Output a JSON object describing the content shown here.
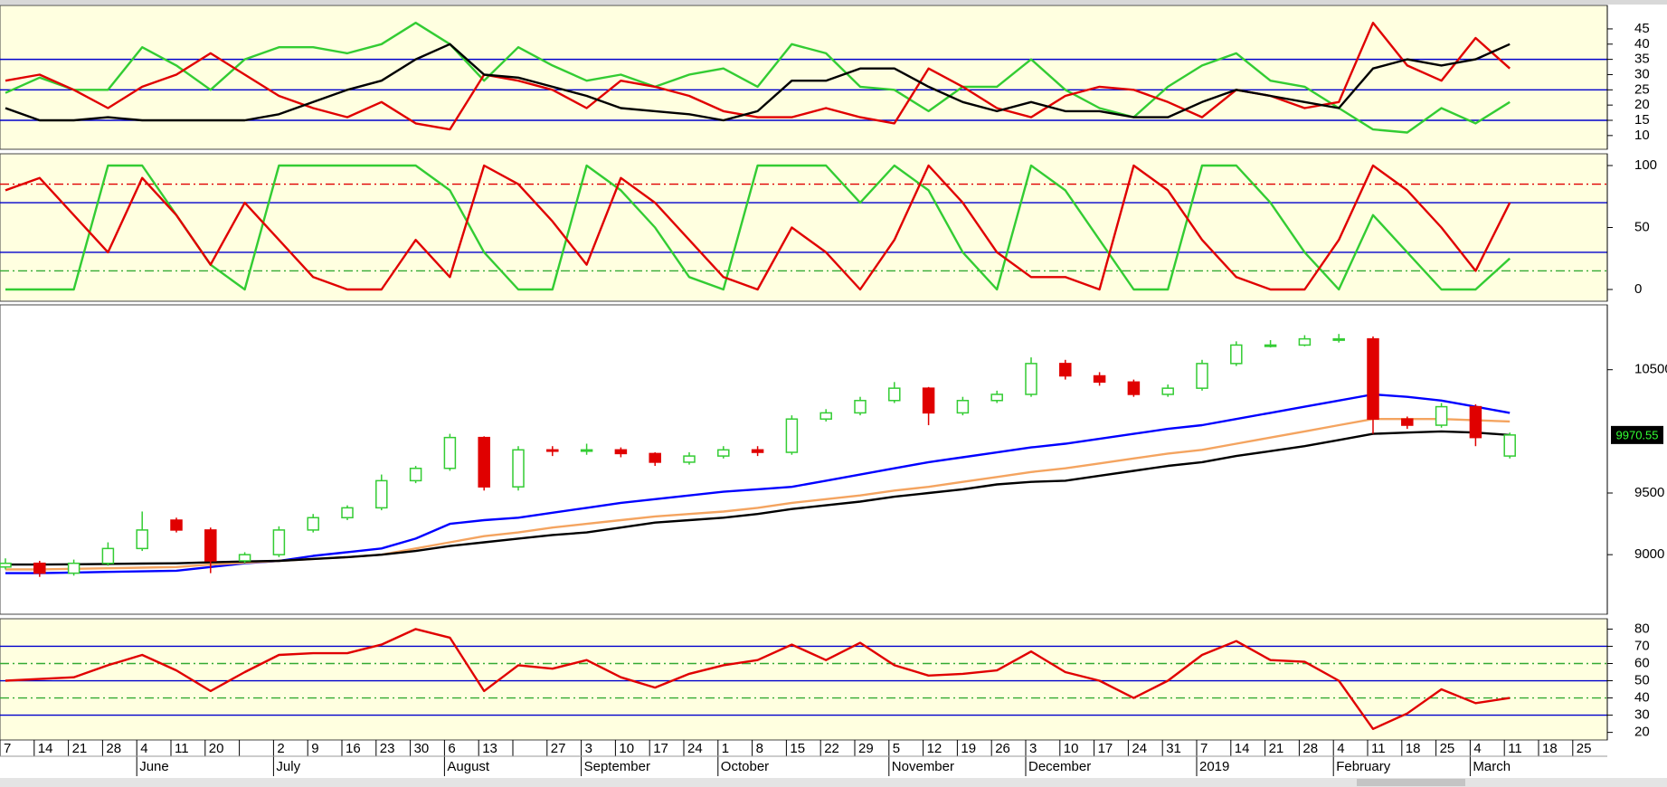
{
  "chart_data": [
    {
      "type": "line",
      "ylim": [
        5.5,
        52.7
      ],
      "yticks": [
        10,
        15,
        20,
        25,
        30,
        35,
        40,
        45
      ],
      "hlines": [
        {
          "value": 15,
          "color": "#0000cc"
        },
        {
          "value": 25,
          "color": "#0000cc"
        },
        {
          "value": 35,
          "color": "#0000cc"
        }
      ],
      "series": [
        {
          "color": "#33cc33",
          "values": [
            24,
            29,
            25,
            25,
            39,
            33,
            25,
            35,
            39,
            39,
            37,
            40,
            47,
            40,
            28,
            39,
            33,
            28,
            30,
            26,
            30,
            32,
            26,
            40,
            37,
            26,
            25,
            18,
            26,
            26,
            35,
            25,
            19,
            16,
            26,
            33,
            37,
            28,
            26,
            19,
            12,
            11,
            19,
            14,
            21,
            null,
            null
          ]
        },
        {
          "color": "#e00000",
          "values": [
            28,
            30,
            25,
            19,
            26,
            30,
            37,
            30,
            23,
            19,
            16,
            21,
            14,
            12,
            30,
            28,
            25,
            19,
            28,
            26,
            23,
            18,
            16,
            16,
            19,
            16,
            14,
            32,
            26,
            19,
            16,
            23,
            26,
            25,
            21,
            16,
            25,
            23,
            19,
            21,
            47,
            33,
            28,
            42,
            32,
            null,
            null
          ]
        },
        {
          "color": "#000000",
          "values": [
            19,
            15,
            15,
            16,
            15,
            15,
            15,
            15,
            17,
            21,
            25,
            28,
            35,
            40,
            30,
            29,
            26,
            23,
            19,
            18,
            17,
            15,
            18,
            28,
            28,
            32,
            32,
            26,
            21,
            18,
            21,
            18,
            18,
            16,
            16,
            21,
            25,
            23,
            21,
            19,
            32,
            35,
            33,
            35,
            40,
            null,
            null
          ]
        }
      ]
    },
    {
      "type": "line",
      "ylim": [
        -9.5,
        109.5
      ],
      "yticks": [
        0,
        50,
        100
      ],
      "hlines": [
        {
          "value": 85,
          "color": "#e00000",
          "dash": true
        },
        {
          "value": 70,
          "color": "#0000cc"
        },
        {
          "value": 30,
          "color": "#0000cc"
        },
        {
          "value": 15,
          "color": "#33aa33",
          "dash": true
        }
      ],
      "series": [
        {
          "color": "#33cc33",
          "values": [
            0,
            0,
            0,
            100,
            100,
            60,
            20,
            0,
            100,
            100,
            100,
            100,
            100,
            80,
            30,
            0,
            0,
            100,
            80,
            50,
            10,
            0,
            100,
            100,
            100,
            70,
            100,
            80,
            30,
            0,
            100,
            80,
            40,
            0,
            0,
            100,
            100,
            70,
            30,
            0,
            60,
            30,
            0,
            0,
            25,
            null,
            null
          ]
        },
        {
          "color": "#e00000",
          "values": [
            80,
            90,
            60,
            30,
            90,
            60,
            20,
            70,
            40,
            10,
            0,
            0,
            40,
            10,
            100,
            85,
            55,
            20,
            90,
            70,
            40,
            10,
            0,
            50,
            30,
            0,
            40,
            100,
            70,
            30,
            10,
            10,
            0,
            100,
            80,
            40,
            10,
            0,
            0,
            40,
            100,
            80,
            50,
            15,
            70,
            null,
            null
          ]
        }
      ]
    },
    {
      "type": "candlestick",
      "ylim": [
        8517,
        11026
      ],
      "yticks": [
        9000,
        9500,
        10500
      ],
      "up_color": "#33cc33",
      "down_color": "#e00000",
      "open": [
        8900,
        8930,
        8850,
        8930,
        9050,
        9280,
        9200,
        8950,
        9000,
        9200,
        9300,
        9380,
        9600,
        9700,
        9950,
        9550,
        9850,
        9840,
        9850,
        9820,
        9750,
        9800,
        9850,
        9830,
        10100,
        10150,
        10250,
        10350,
        10150,
        10250,
        10300,
        10550,
        10450,
        10400,
        10300,
        10350,
        10550,
        10700,
        10700,
        10750,
        10750,
        10100,
        10050,
        10200,
        9800,
        null,
        null
      ],
      "high": [
        8970,
        8950,
        8960,
        9100,
        9350,
        9300,
        9220,
        9020,
        9230,
        9330,
        9400,
        9650,
        9720,
        9980,
        9960,
        9880,
        9880,
        9900,
        9870,
        9830,
        9830,
        9880,
        9880,
        10130,
        10180,
        10280,
        10400,
        10360,
        10280,
        10330,
        10600,
        10580,
        10480,
        10420,
        10380,
        10580,
        10730,
        10740,
        10780,
        10790,
        10770,
        10120,
        10230,
        10220,
        9990,
        null,
        null
      ],
      "low": [
        8880,
        8820,
        8830,
        8910,
        9030,
        9180,
        8850,
        8930,
        8980,
        9180,
        9280,
        9360,
        9580,
        9680,
        9520,
        9520,
        9800,
        9810,
        9790,
        9720,
        9730,
        9780,
        9800,
        9810,
        10080,
        10130,
        10230,
        10050,
        10130,
        10230,
        10280,
        10420,
        10370,
        10280,
        10280,
        10330,
        10530,
        10680,
        10690,
        10720,
        9980,
        10020,
        10030,
        9880,
        9780,
        null,
        null
      ],
      "close": [
        8930,
        8850,
        8930,
        9050,
        9200,
        9200,
        8950,
        9000,
        9200,
        9300,
        9380,
        9600,
        9700,
        9950,
        9550,
        9850,
        9840,
        9850,
        9820,
        9750,
        9800,
        9850,
        9830,
        10100,
        10150,
        10250,
        10350,
        10150,
        10250,
        10300,
        10550,
        10450,
        10400,
        10300,
        10350,
        10550,
        10700,
        10700,
        10750,
        10750,
        10100,
        10050,
        10200,
        9950,
        9970.55,
        null,
        null
      ],
      "series": [
        {
          "color": "#0000ff",
          "values": [
            8850,
            8850,
            8855,
            8860,
            8865,
            8870,
            8900,
            8930,
            8950,
            8990,
            9020,
            9050,
            9130,
            9250,
            9280,
            9300,
            9340,
            9380,
            9420,
            9450,
            9480,
            9510,
            9530,
            9550,
            9600,
            9650,
            9700,
            9750,
            9790,
            9830,
            9870,
            9900,
            9940,
            9980,
            10020,
            10050,
            10100,
            10150,
            10200,
            10250,
            10300,
            10280,
            10250,
            10200,
            10150,
            null,
            null
          ]
        },
        {
          "color": "#f4a460",
          "values": [
            8880,
            8880,
            8885,
            8890,
            8895,
            8900,
            8920,
            8935,
            8950,
            8965,
            8980,
            9000,
            9050,
            9100,
            9150,
            9180,
            9220,
            9250,
            9280,
            9310,
            9330,
            9350,
            9380,
            9420,
            9450,
            9480,
            9520,
            9550,
            9590,
            9630,
            9670,
            9700,
            9740,
            9780,
            9820,
            9850,
            9900,
            9950,
            10000,
            10050,
            10100,
            10100,
            10100,
            10090,
            10080,
            null,
            null
          ]
        },
        {
          "color": "#000000",
          "values": [
            8920,
            8920,
            8922,
            8925,
            8928,
            8930,
            8938,
            8945,
            8950,
            8965,
            8980,
            9000,
            9030,
            9070,
            9100,
            9130,
            9160,
            9180,
            9220,
            9260,
            9280,
            9300,
            9330,
            9370,
            9400,
            9430,
            9470,
            9500,
            9530,
            9570,
            9590,
            9600,
            9640,
            9680,
            9720,
            9750,
            9800,
            9840,
            9880,
            9930,
            9980,
            9990,
            10000,
            9990,
            9970,
            null,
            null
          ]
        }
      ]
    },
    {
      "type": "line",
      "ylim": [
        15.6,
        86
      ],
      "yticks": [
        20,
        30,
        40,
        50,
        60,
        70,
        80
      ],
      "hlines": [
        {
          "value": 70,
          "color": "#0000cc"
        },
        {
          "value": 60,
          "color": "#33aa33",
          "dash": true
        },
        {
          "value": 50,
          "color": "#0000cc"
        },
        {
          "value": 40,
          "color": "#33aa33",
          "dash": true
        },
        {
          "value": 30,
          "color": "#0000cc"
        }
      ],
      "series": [
        {
          "color": "#e00000",
          "values": [
            50,
            51,
            52,
            59,
            65,
            56,
            44,
            55,
            65,
            66,
            66,
            71,
            80,
            75,
            44,
            59,
            57,
            62,
            52,
            46,
            54,
            59,
            62,
            71,
            62,
            72,
            59,
            53,
            54,
            56,
            67,
            55,
            50,
            40,
            50,
            65,
            73,
            62,
            61,
            50,
            22,
            31,
            45,
            37,
            40,
            null,
            null
          ]
        }
      ],
      "categories": [
        "7",
        "14",
        "21",
        "28",
        "4",
        "11",
        "20",
        null,
        "2",
        "9",
        "16",
        "23",
        "30",
        "6",
        "13",
        null,
        "27",
        "3",
        "10",
        "17",
        "24",
        "1",
        "8",
        "15",
        "22",
        "29",
        "5",
        "12",
        "19",
        "26",
        "3",
        "10",
        "17",
        "24",
        "31",
        "7",
        "14",
        "21",
        "28",
        "4",
        "11",
        "18",
        "25",
        "4",
        "11",
        "18",
        "25"
      ],
      "months": [
        {
          "value": 4,
          "label": "June"
        },
        {
          "value": 8,
          "label": "July"
        },
        {
          "value": 13,
          "label": "August"
        },
        {
          "value": 17,
          "label": "September"
        },
        {
          "value": 21,
          "label": "October"
        },
        {
          "value": 26,
          "label": "November"
        },
        {
          "value": 30,
          "label": "December"
        },
        {
          "value": 35,
          "label": "2019"
        },
        {
          "value": 39,
          "label": "February"
        },
        {
          "value": 43,
          "label": "March"
        }
      ]
    }
  ]
}
